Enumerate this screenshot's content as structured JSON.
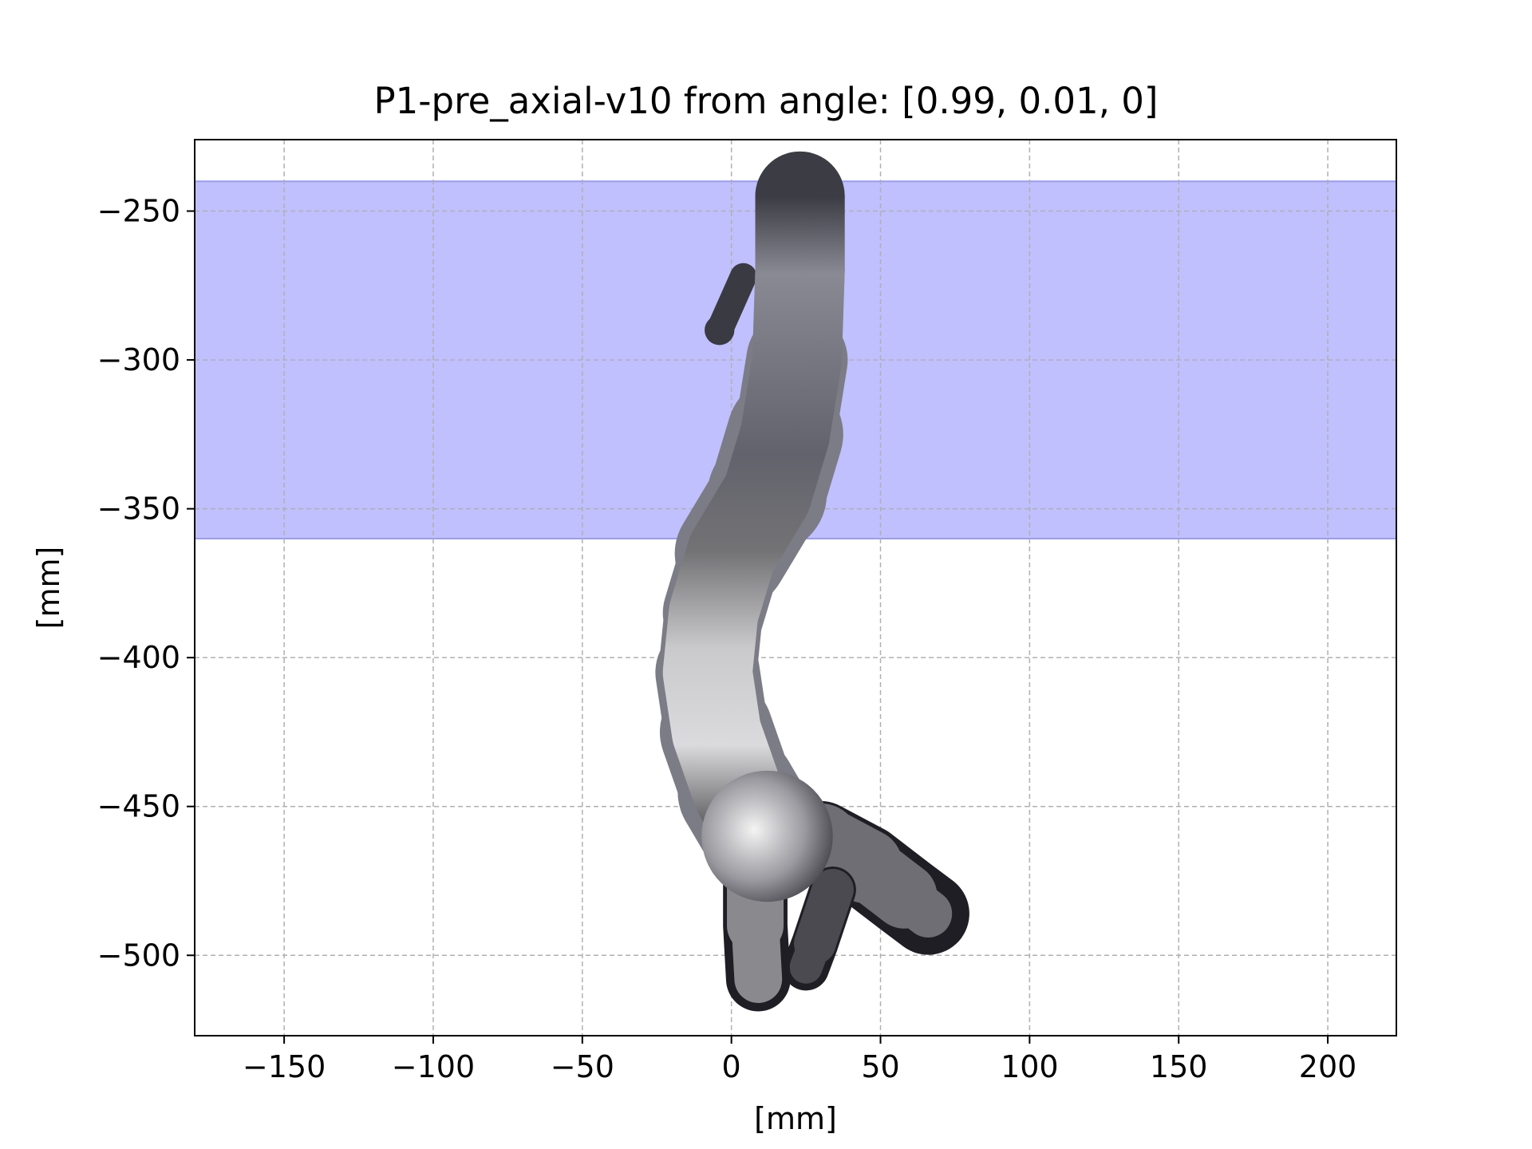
{
  "chart_data": {
    "type": "scatter",
    "title": "P1-pre_axial-v10 from angle: [0.99, 0.01, 0]",
    "xlabel": "[mm]",
    "ylabel": "[mm]",
    "xlim": [
      -180,
      223
    ],
    "ylim": [
      -527,
      -226
    ],
    "x_ticks": [
      -150,
      -100,
      -50,
      0,
      50,
      100,
      150,
      200
    ],
    "x_tick_labels": [
      "−150",
      "−100",
      "−50",
      "0",
      "50",
      "100",
      "150",
      "200"
    ],
    "y_ticks": [
      -250,
      -300,
      -350,
      -400,
      -450,
      -500
    ],
    "y_tick_labels": [
      "−250",
      "−300",
      "−350",
      "−400",
      "−450",
      "−500"
    ],
    "grid": true,
    "highlight_band": {
      "y_range": [
        -360,
        -240
      ],
      "color": "#c0c0ff",
      "edge_color": "#9a9af5"
    },
    "point_cloud": {
      "description_colormap": "gray",
      "main_trunk": [
        {
          "x": 23,
          "y": -245,
          "w": 30
        },
        {
          "x": 23,
          "y": -270,
          "w": 30
        },
        {
          "x": 22,
          "y": -300,
          "w": 30
        },
        {
          "x": 18,
          "y": -325,
          "w": 38
        },
        {
          "x": 12,
          "y": -345,
          "w": 40
        },
        {
          "x": 0,
          "y": -365,
          "w": 36
        },
        {
          "x": -6,
          "y": -385,
          "w": 32
        },
        {
          "x": -8,
          "y": -405,
          "w": 34
        },
        {
          "x": -5,
          "y": -425,
          "w": 36
        },
        {
          "x": 2,
          "y": -445,
          "w": 40
        },
        {
          "x": 12,
          "y": -462,
          "w": 40
        }
      ],
      "left_leg": [
        {
          "x": 8,
          "y": -470,
          "w": 20
        },
        {
          "x": 8,
          "y": -490,
          "w": 18
        },
        {
          "x": 9,
          "y": -508,
          "w": 14
        }
      ],
      "right_leg": [
        {
          "x": 30,
          "y": -462,
          "w": 26
        },
        {
          "x": 45,
          "y": -470,
          "w": 24
        },
        {
          "x": 58,
          "y": -480,
          "w": 20
        },
        {
          "x": 66,
          "y": -486,
          "w": 12
        }
      ],
      "inner_branch": [
        {
          "x": 34,
          "y": -478,
          "w": 14
        },
        {
          "x": 28,
          "y": -496,
          "w": 14
        },
        {
          "x": 25,
          "y": -504,
          "w": 8
        }
      ],
      "side_lobe": [
        {
          "x": 4,
          "y": -272,
          "w": 8
        },
        {
          "x": -4,
          "y": -290,
          "w": 10
        }
      ]
    }
  }
}
